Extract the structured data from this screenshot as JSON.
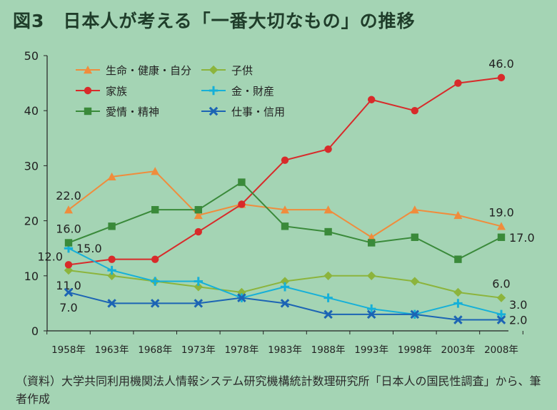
{
  "title": "図3　日本人が考える「一番大切なもの」の推移",
  "source_note": "（資料）大学共同利用機関法人情報システム研究機構統計数理研究所「日本人の国民性調査」から、筆者作成",
  "chart_data": {
    "type": "line",
    "title": "図3　日本人が考える「一番大切なもの」の推移",
    "xlabel": "",
    "ylabel": "",
    "ylim": [
      0,
      50
    ],
    "yticks": [
      0,
      10,
      20,
      30,
      40,
      50
    ],
    "grid": false,
    "legend_position": "top-left",
    "categories": [
      "1958年",
      "1963年",
      "1968年",
      "1973年",
      "1978年",
      "1983年",
      "1988年",
      "1993年",
      "1998年",
      "2003年",
      "2008年"
    ],
    "series": [
      {
        "name": "生命・健康・自分",
        "color": "#f08c3c",
        "marker": "triangle",
        "values": [
          22,
          28,
          29,
          21,
          23,
          22,
          22,
          17,
          22,
          21,
          19
        ],
        "labels": [
          {
            "index": 0,
            "text": "22.0",
            "pos": "above"
          },
          {
            "index": 10,
            "text": "19.0",
            "pos": "above"
          }
        ]
      },
      {
        "name": "子供",
        "color": "#8cb43c",
        "marker": "diamond",
        "values": [
          11,
          10,
          9,
          8,
          7,
          9,
          10,
          10,
          9,
          7,
          6
        ],
        "labels": [
          {
            "index": 0,
            "text": "11.0",
            "pos": "below"
          },
          {
            "index": 10,
            "text": "6.0",
            "pos": "above"
          }
        ]
      },
      {
        "name": "家族",
        "color": "#d82a2a",
        "marker": "circle",
        "values": [
          12,
          13,
          13,
          18,
          23,
          31,
          33,
          42,
          40,
          45,
          46
        ],
        "labels": [
          {
            "index": 0,
            "text": "12.0",
            "pos": "left"
          },
          {
            "index": 10,
            "text": "46.0",
            "pos": "above"
          }
        ]
      },
      {
        "name": "金・財産",
        "color": "#16b0d8",
        "marker": "plus",
        "values": [
          15,
          11,
          9,
          9,
          6,
          8,
          6,
          4,
          3,
          5,
          3
        ],
        "labels": [
          {
            "index": 0,
            "text": "15.0",
            "pos": "right"
          },
          {
            "index": 10,
            "text": "3.0",
            "pos": "right-up"
          }
        ]
      },
      {
        "name": "愛情・精神",
        "color": "#3a8a3a",
        "marker": "square",
        "values": [
          16,
          19,
          22,
          22,
          27,
          19,
          18,
          16,
          17,
          13,
          17
        ],
        "labels": [
          {
            "index": 0,
            "text": "16.0",
            "pos": "above"
          },
          {
            "index": 10,
            "text": "17.0",
            "pos": "right"
          }
        ]
      },
      {
        "name": "仕事・信用",
        "color": "#1c64b4",
        "marker": "x",
        "values": [
          7,
          5,
          5,
          5,
          6,
          5,
          3,
          3,
          3,
          2,
          2
        ],
        "labels": [
          {
            "index": 0,
            "text": "7.0",
            "pos": "below"
          },
          {
            "index": 10,
            "text": "2.0",
            "pos": "right"
          }
        ]
      }
    ]
  }
}
